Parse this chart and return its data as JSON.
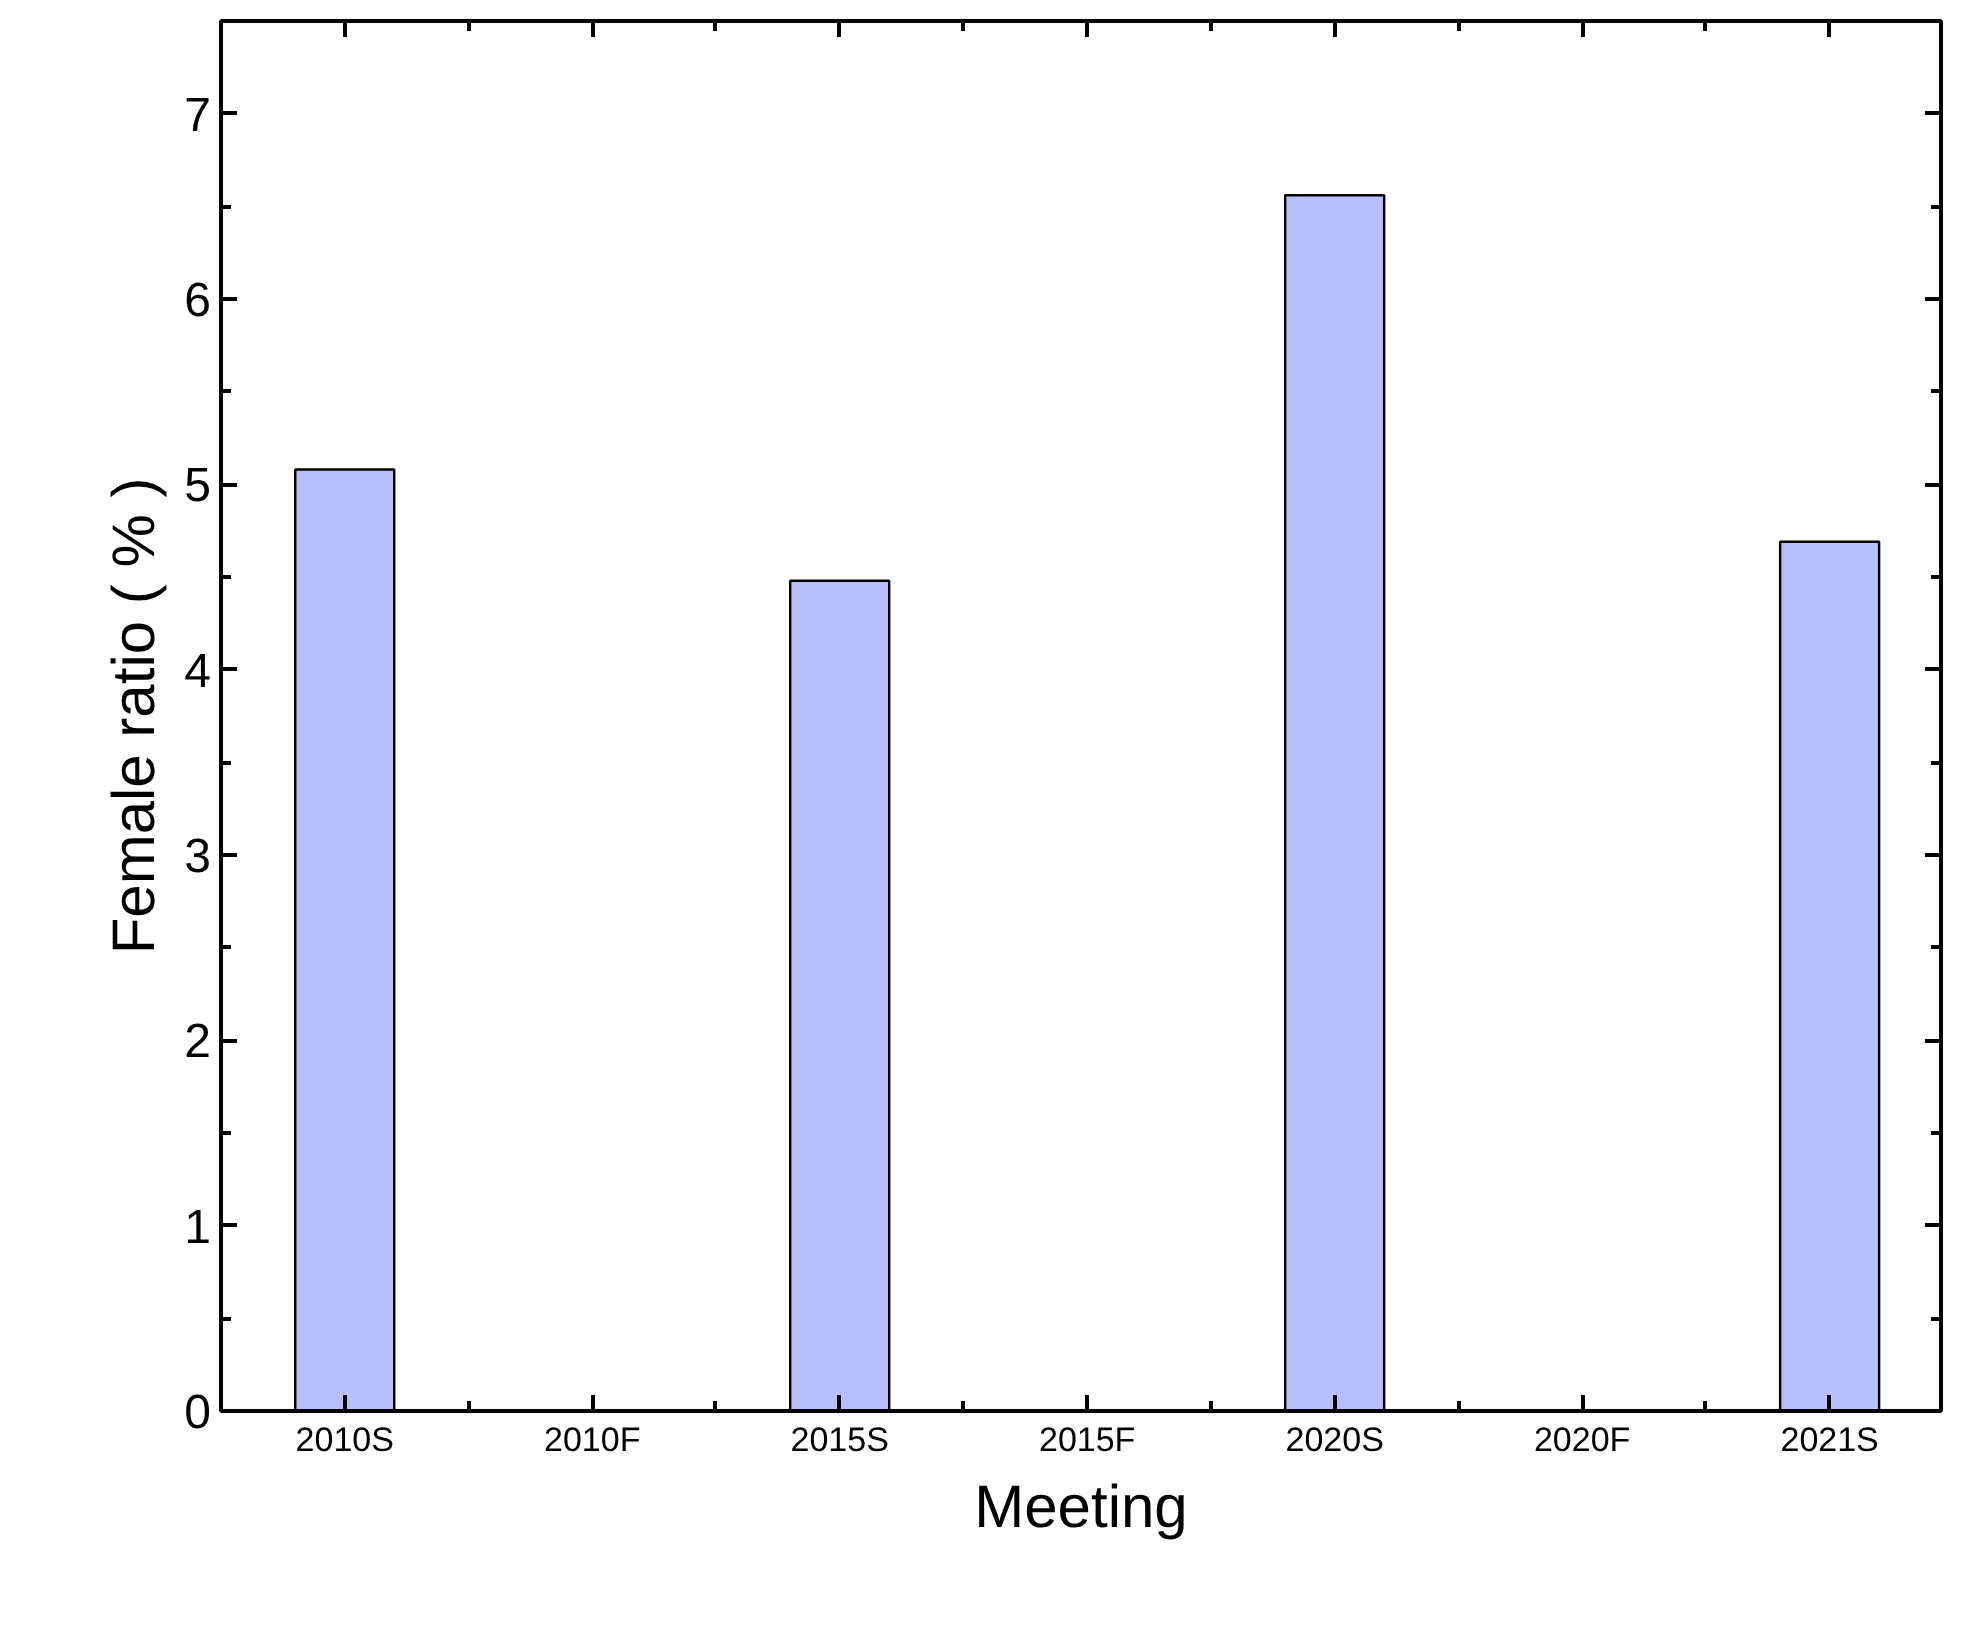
{
  "chart_data": {
    "type": "bar",
    "xlabel": "Meeting",
    "ylabel": "Female ratio ( % )",
    "categories": [
      "2010S",
      "2010F",
      "2015S",
      "2015F",
      "2020S",
      "2020F",
      "2021S"
    ],
    "values": [
      5.08,
      null,
      4.48,
      null,
      6.56,
      null,
      4.69
    ],
    "color": "#b8c0fc",
    "ylim": [
      0,
      7.5
    ],
    "yticks": [
      0,
      1,
      2,
      3,
      4,
      5,
      6,
      7
    ],
    "grid": false
  }
}
